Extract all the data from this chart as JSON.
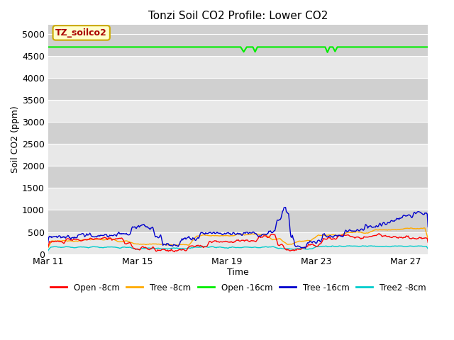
{
  "title": "Tonzi Soil CO2 Profile: Lower CO2",
  "xlabel": "Time",
  "ylabel": "Soil CO2 (ppm)",
  "ylim": [
    0,
    5200
  ],
  "yticks": [
    0,
    500,
    1000,
    1500,
    2000,
    2500,
    3000,
    3500,
    4000,
    4500,
    5000
  ],
  "xtick_labels": [
    "Mar 11",
    "Mar 15",
    "Mar 19",
    "Mar 23",
    "Mar 27"
  ],
  "bg_color": "#d8d8d8",
  "band_light": "#e8e8e8",
  "band_dark": "#d0d0d0",
  "annotation_label": "TZ_soilco2",
  "annotation_bg": "#ffffcc",
  "annotation_border": "#ccaa00",
  "annotation_text_color": "#aa0000",
  "legend_entries": [
    {
      "label": "Open -8cm",
      "color": "#ff0000"
    },
    {
      "label": "Tree -8cm",
      "color": "#ffaa00"
    },
    {
      "label": "Open -16cm",
      "color": "#00ee00"
    },
    {
      "label": "Tree -16cm",
      "color": "#0000cc"
    },
    {
      "label": "Tree2 -8cm",
      "color": "#00cccc"
    }
  ],
  "n_points": 500,
  "xtick_positions": [
    0.0,
    0.235,
    0.47,
    0.706,
    0.941
  ]
}
